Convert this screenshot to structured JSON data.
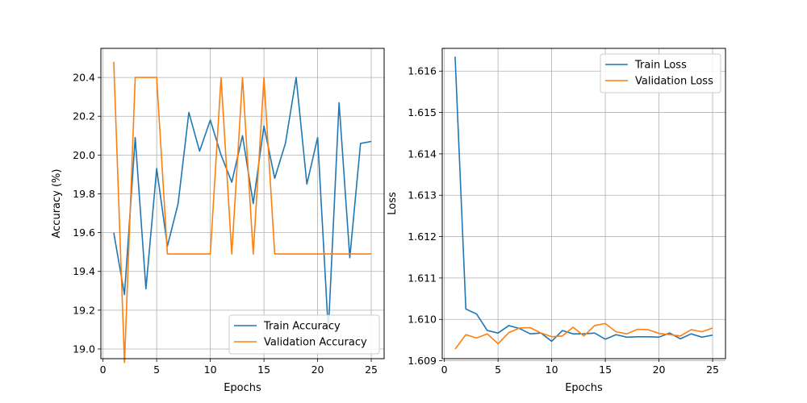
{
  "chart_data": [
    {
      "type": "line",
      "title": "",
      "xlabel": "Epochs",
      "ylabel": "Accuracy (%)",
      "xlim": [
        -0.2,
        26.2
      ],
      "ylim": [
        18.95,
        20.55
      ],
      "xticks": [
        0,
        5,
        10,
        15,
        20,
        25
      ],
      "xtick_labels": [
        "0",
        "5",
        "10",
        "15",
        "20",
        "25"
      ],
      "yticks": [
        19.0,
        19.2,
        19.4,
        19.6,
        19.8,
        20.0,
        20.2,
        20.4
      ],
      "ytick_labels": [
        "19.0",
        "19.2",
        "19.4",
        "19.6",
        "19.8",
        "20.0",
        "20.2",
        "20.4"
      ],
      "grid": true,
      "legend_position": "lower-right",
      "x": [
        1,
        2,
        3,
        4,
        5,
        6,
        7,
        8,
        9,
        10,
        11,
        12,
        13,
        14,
        15,
        16,
        17,
        18,
        19,
        20,
        21,
        22,
        23,
        24,
        25
      ],
      "series": [
        {
          "name": "Train Accuracy",
          "color": "#1f77b4",
          "values": [
            19.6,
            19.28,
            20.09,
            19.31,
            19.93,
            19.53,
            19.75,
            20.22,
            20.02,
            20.18,
            20.0,
            19.86,
            20.1,
            19.75,
            20.15,
            19.88,
            20.06,
            20.4,
            19.85,
            20.09,
            19.09,
            20.27,
            19.47,
            20.06,
            20.07
          ]
        },
        {
          "name": "Validation Accuracy",
          "color": "#ff7f0e",
          "values": [
            20.48,
            18.93,
            20.4,
            20.4,
            20.4,
            19.49,
            19.49,
            19.49,
            19.49,
            19.49,
            20.4,
            19.49,
            20.4,
            19.49,
            20.4,
            19.49,
            19.49,
            19.49,
            19.49,
            19.49,
            19.49,
            19.49,
            19.49,
            19.49,
            19.49
          ]
        }
      ]
    },
    {
      "type": "line",
      "title": "",
      "xlabel": "Epochs",
      "ylabel": "Loss",
      "xlim": [
        -0.2,
        26.2
      ],
      "ylim": [
        1.60905,
        1.61655
      ],
      "xticks": [
        0,
        5,
        10,
        15,
        20,
        25
      ],
      "xtick_labels": [
        "0",
        "5",
        "10",
        "15",
        "20",
        "25"
      ],
      "yticks": [
        1.609,
        1.61,
        1.611,
        1.612,
        1.613,
        1.614,
        1.615,
        1.616
      ],
      "ytick_labels": [
        "1.609",
        "1.610",
        "1.611",
        "1.612",
        "1.613",
        "1.614",
        "1.615",
        "1.616"
      ],
      "grid": true,
      "legend_position": "upper-right",
      "x": [
        1,
        2,
        3,
        4,
        5,
        6,
        7,
        8,
        9,
        10,
        11,
        12,
        13,
        14,
        15,
        16,
        17,
        18,
        19,
        20,
        21,
        22,
        23,
        24,
        25
      ],
      "series": [
        {
          "name": "Train Loss",
          "color": "#1f77b4",
          "values": [
            1.61635,
            1.61025,
            1.61013,
            1.60973,
            1.60967,
            1.60985,
            1.60978,
            1.60965,
            1.60967,
            1.60947,
            1.60973,
            1.60965,
            1.60965,
            1.60967,
            1.60952,
            1.60963,
            1.60957,
            1.60958,
            1.60958,
            1.60957,
            1.60967,
            1.60953,
            1.60965,
            1.60957,
            1.60962
          ]
        },
        {
          "name": "Validation Loss",
          "color": "#ff7f0e",
          "values": [
            1.60928,
            1.60963,
            1.60955,
            1.60965,
            1.60941,
            1.60968,
            1.60979,
            1.6098,
            1.60967,
            1.60958,
            1.6096,
            1.60981,
            1.6096,
            1.60985,
            1.6099,
            1.6097,
            1.60965,
            1.60976,
            1.60975,
            1.60966,
            1.60963,
            1.6096,
            1.60975,
            1.6097,
            1.60979
          ]
        }
      ]
    }
  ]
}
